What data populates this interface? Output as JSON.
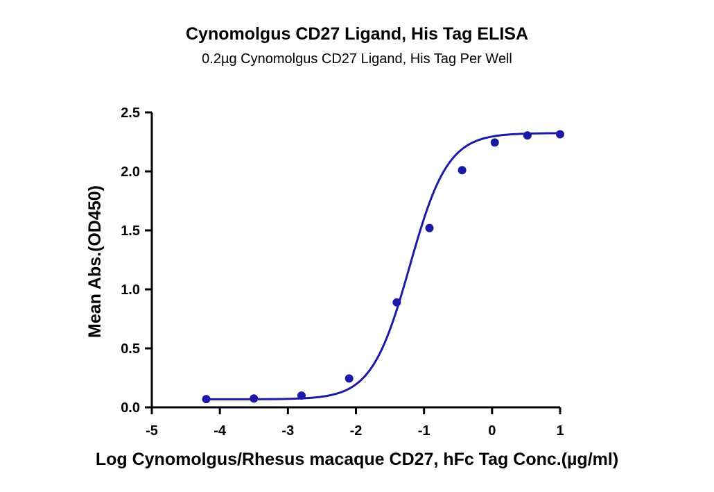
{
  "chart_data": {
    "type": "scatter",
    "title": "Cynomolgus CD27 Ligand, His Tag ELISA",
    "subtitle": "0.2µg Cynomolgus CD27 Ligand, His Tag Per Well",
    "xlabel": "Log Cynomolgus/Rhesus macaque CD27, hFc Tag Conc.(µg/ml)",
    "ylabel": "Mean Abs.(OD450)",
    "xlim": [
      -5,
      1
    ],
    "ylim": [
      0,
      2.5
    ],
    "x_ticks": [
      "-5",
      "-4",
      "-3",
      "-2",
      "-1",
      "0",
      "1"
    ],
    "y_ticks": [
      "0.0",
      "0.5",
      "1.0",
      "1.5",
      "2.0",
      "2.5"
    ],
    "grid": false,
    "series": [
      {
        "color": "#1a1aa6",
        "points": [
          {
            "x": -4.2,
            "y": 0.07
          },
          {
            "x": -3.5,
            "y": 0.075
          },
          {
            "x": -2.8,
            "y": 0.1
          },
          {
            "x": -2.1,
            "y": 0.245
          },
          {
            "x": -1.4,
            "y": 0.89
          },
          {
            "x": -0.92,
            "y": 1.52
          },
          {
            "x": -0.44,
            "y": 2.01
          },
          {
            "x": 0.04,
            "y": 2.245
          },
          {
            "x": 0.52,
            "y": 2.305
          },
          {
            "x": 1.0,
            "y": 2.315
          }
        ],
        "fit": {
          "model": "4PL",
          "bottom": 0.068,
          "top": 2.325,
          "log_ec50": -1.21,
          "hill": 1.55
        }
      }
    ]
  }
}
